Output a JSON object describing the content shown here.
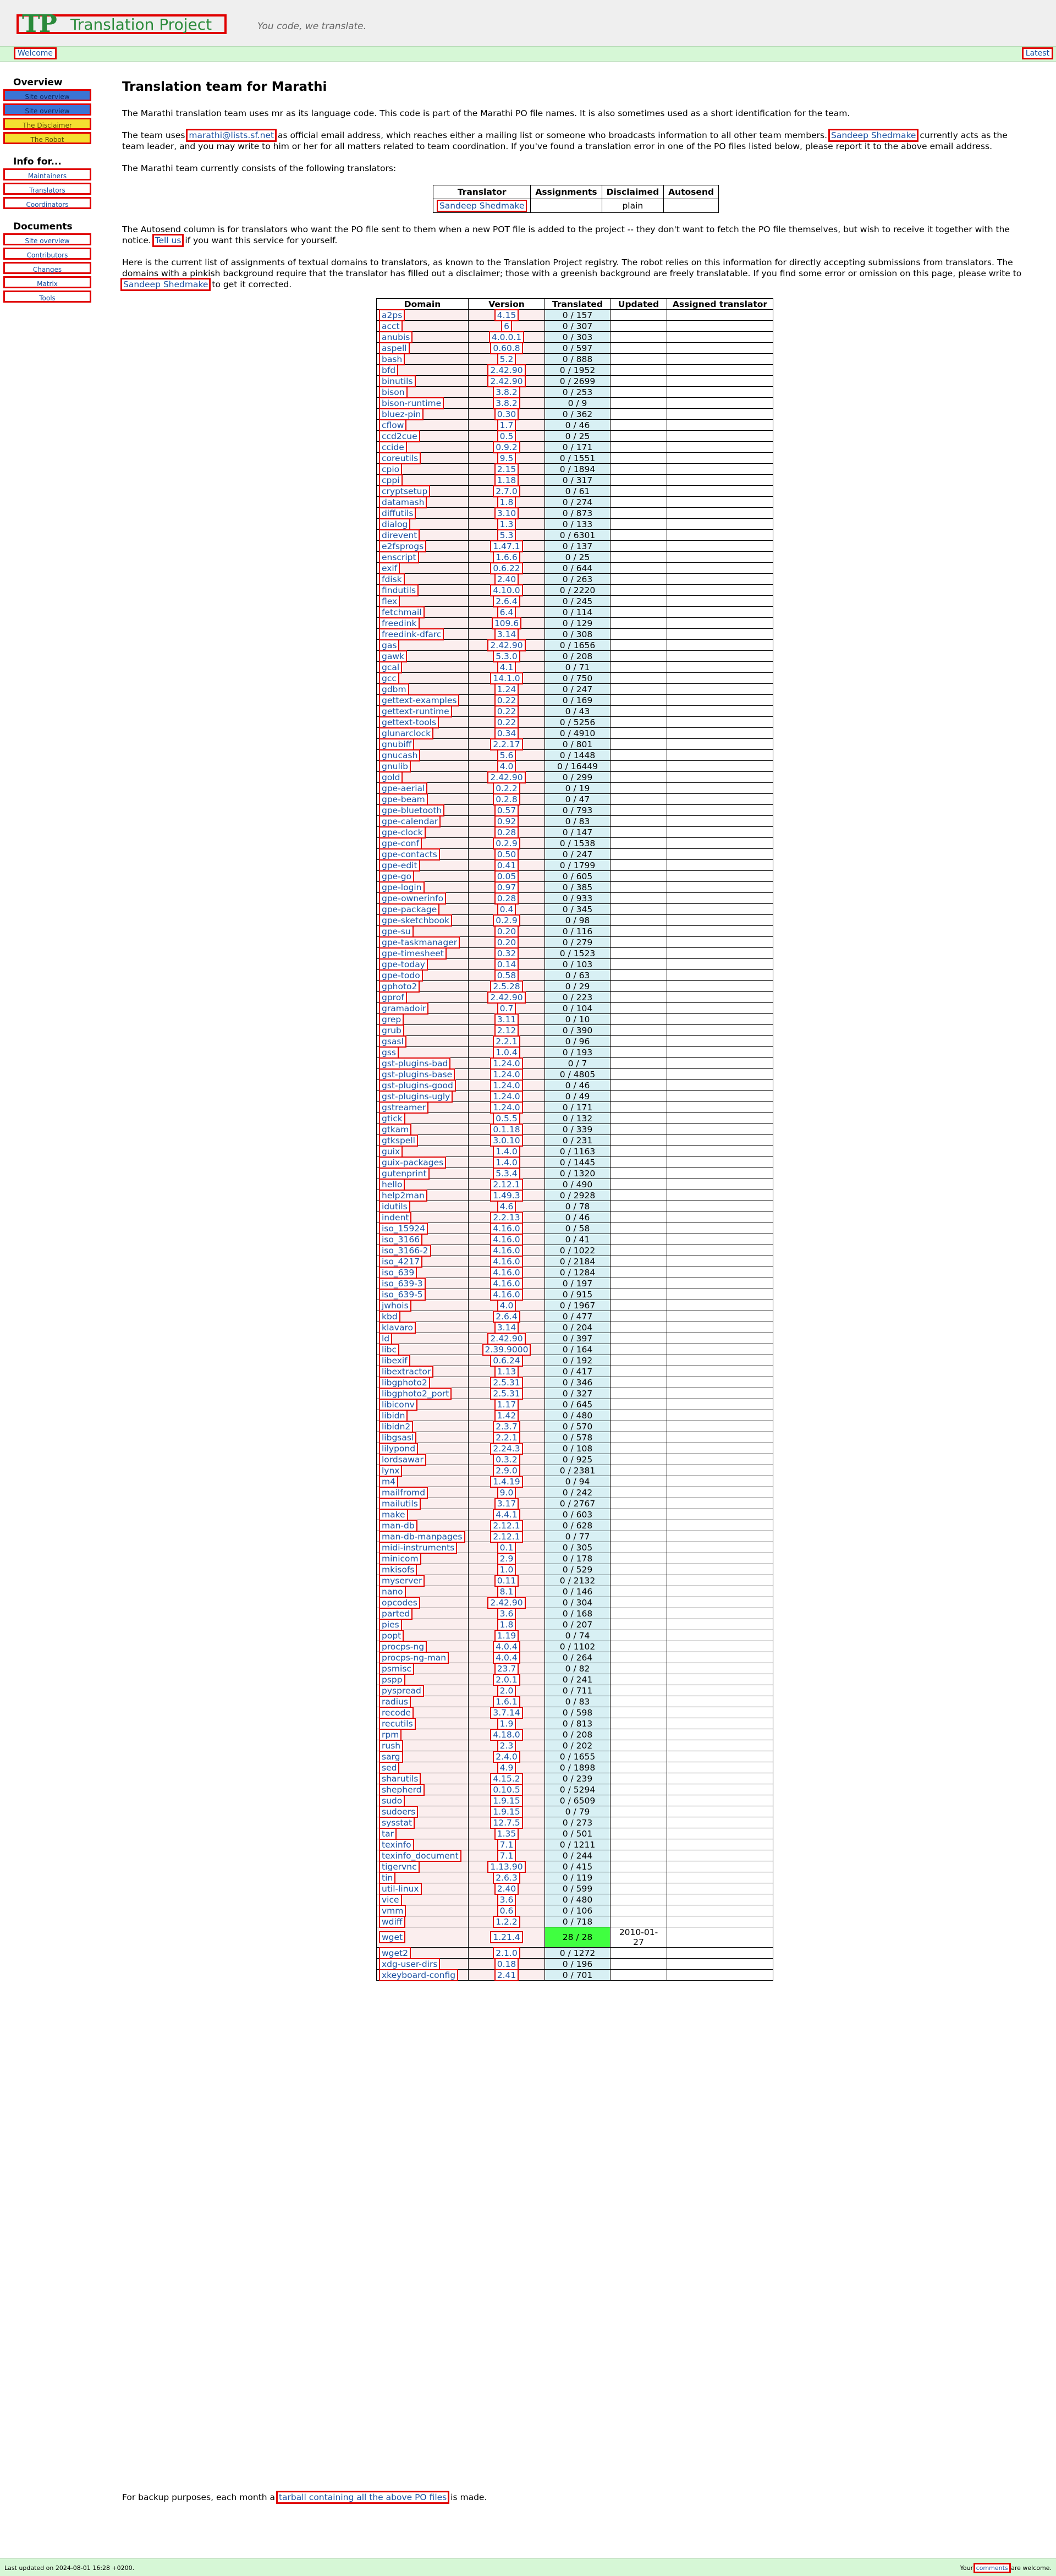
{
  "header": {
    "logo_mark": "TP",
    "logo_text": "Translation Project",
    "tagline": "You code, we translate."
  },
  "navbar": {
    "welcome": "Welcome",
    "latest": "Latest"
  },
  "sidebar": {
    "overview_title": "Overview",
    "overview_items": [
      {
        "label": "Site overview",
        "style": "blue"
      },
      {
        "label": "Site overview",
        "style": "blue"
      },
      {
        "label": "The Disclaimer",
        "style": "yellow"
      },
      {
        "label": "The Robot",
        "style": "yellow"
      }
    ],
    "info_title": "Info for...",
    "info_items": [
      "Maintainers",
      "Translators",
      "Coordinators"
    ],
    "docs_title": "Documents",
    "docs_items": [
      "Site overview",
      "Contributors",
      "Changes",
      "Matrix",
      "Tools"
    ]
  },
  "main": {
    "title": "Translation team for Marathi",
    "p1": "The Marathi translation team uses mr as its language code. This code is part of the Marathi PO file names. It is also sometimes used as a short identification for the team.",
    "p2_a": "The team uses",
    "p2_email": "marathi@lists.sf.net",
    "p2_b": "as official email address, which reaches either a mailing list or someone who broadcasts information to all other team members.",
    "p2_leader": "Sandeep Shedmake",
    "p2_c": "currently acts as the team leader, and you may write to him or her for all matters related to team coordination. If you've found a translation error in one of the PO files listed below, please report it to the above email address.",
    "p3": "The Marathi team currently consists of the following translators:",
    "translators_headers": [
      "Translator",
      "Assignments",
      "Disclaimed",
      "Autosend"
    ],
    "translators_rows": [
      [
        "Sandeep Shedmake",
        "",
        "plain",
        ""
      ]
    ],
    "p4_a": "The Autosend column is for translators who want the PO file sent to them when a new POT file is added to the project -- they don't want to fetch the PO file themselves, but wish to receive it together with the notice.",
    "p4_link": "Tell us",
    "p4_b": "if you want this service for yourself.",
    "p5_a": "Here is the current list of assignments of textual domains to translators, as known to the Translation Project registry. The robot relies on this information for directly accepting submissions from translators. The domains with a pinkish background require that the translator has filled out a disclaimer; those with a greenish background are freely translatable. If you find some error or omission on this page, please write to",
    "p5_link": "Sandeep Shedmake",
    "p5_b": "to get it corrected."
  },
  "domains_headers": [
    "Domain",
    "Version",
    "Translated",
    "Updated",
    "Assigned translator"
  ],
  "domains": [
    [
      "a2ps",
      "4.15",
      "0 / 157",
      ""
    ],
    [
      "acct",
      "6",
      "0 / 307",
      ""
    ],
    [
      "anubis",
      "4.0.0.1",
      "0 / 303",
      ""
    ],
    [
      "aspell",
      "0.60.8",
      "0 / 597",
      ""
    ],
    [
      "bash",
      "5.2",
      "0 / 888",
      ""
    ],
    [
      "bfd",
      "2.42.90",
      "0 / 1952",
      ""
    ],
    [
      "binutils",
      "2.42.90",
      "0 / 2699",
      ""
    ],
    [
      "bison",
      "3.8.2",
      "0 / 253",
      ""
    ],
    [
      "bison-runtime",
      "3.8.2",
      "0 / 9",
      ""
    ],
    [
      "bluez-pin",
      "0.30",
      "0 / 362",
      ""
    ],
    [
      "cflow",
      "1.7",
      "0 / 46",
      ""
    ],
    [
      "ccd2cue",
      "0.5",
      "0 / 25",
      ""
    ],
    [
      "ccide",
      "0.9.2",
      "0 / 171",
      ""
    ],
    [
      "coreutils",
      "9.5",
      "0 / 1551",
      ""
    ],
    [
      "cpio",
      "2.15",
      "0 / 1894",
      ""
    ],
    [
      "cppi",
      "1.18",
      "0 / 317",
      ""
    ],
    [
      "cryptsetup",
      "2.7.0",
      "0 / 61",
      ""
    ],
    [
      "datamash",
      "1.8",
      "0 / 274",
      ""
    ],
    [
      "diffutils",
      "3.10",
      "0 / 873",
      ""
    ],
    [
      "dialog",
      "1.3",
      "0 / 133",
      ""
    ],
    [
      "direvent",
      "5.3",
      "0 / 6301",
      ""
    ],
    [
      "e2fsprogs",
      "1.47.1",
      "0 / 137",
      ""
    ],
    [
      "enscript",
      "1.6.6",
      "0 / 25",
      ""
    ],
    [
      "exif",
      "0.6.22",
      "0 / 644",
      ""
    ],
    [
      "fdisk",
      "2.40",
      "0 / 263",
      ""
    ],
    [
      "findutils",
      "4.10.0",
      "0 / 2220",
      ""
    ],
    [
      "flex",
      "2.6.4",
      "0 / 245",
      ""
    ],
    [
      "fetchmail",
      "6.4",
      "0 / 114",
      ""
    ],
    [
      "freedink",
      "109.6",
      "0 / 129",
      ""
    ],
    [
      "freedink-dfarc",
      "3.14",
      "0 / 308",
      ""
    ],
    [
      "gas",
      "2.42.90",
      "0 / 1656",
      ""
    ],
    [
      "gawk",
      "5.3.0",
      "0 / 208",
      ""
    ],
    [
      "gcal",
      "4.1",
      "0 / 71",
      ""
    ],
    [
      "gcc",
      "14.1.0",
      "0 / 750",
      ""
    ],
    [
      "gdbm",
      "1.24",
      "0 / 247",
      ""
    ],
    [
      "gettext-examples",
      "0.22",
      "0 / 169",
      ""
    ],
    [
      "gettext-runtime",
      "0.22",
      "0 / 43",
      ""
    ],
    [
      "gettext-tools",
      "0.22",
      "0 / 5256",
      ""
    ],
    [
      "glunarclock",
      "0.34",
      "0 / 4910",
      ""
    ],
    [
      "gnubiff",
      "2.2.17",
      "0 / 801",
      ""
    ],
    [
      "gnucash",
      "5.6",
      "0 / 1448",
      ""
    ],
    [
      "gnulib",
      "4.0",
      "0 / 16449",
      ""
    ],
    [
      "gold",
      "2.42.90",
      "0 / 299",
      ""
    ],
    [
      "gpe-aerial",
      "0.2.2",
      "0 / 19",
      ""
    ],
    [
      "gpe-beam",
      "0.2.8",
      "0 / 47",
      ""
    ],
    [
      "gpe-bluetooth",
      "0.57",
      "0 / 793",
      ""
    ],
    [
      "gpe-calendar",
      "0.92",
      "0 / 83",
      ""
    ],
    [
      "gpe-clock",
      "0.28",
      "0 / 147",
      ""
    ],
    [
      "gpe-conf",
      "0.2.9",
      "0 / 1538",
      ""
    ],
    [
      "gpe-contacts",
      "0.50",
      "0 / 247",
      ""
    ],
    [
      "gpe-edit",
      "0.41",
      "0 / 1799",
      ""
    ],
    [
      "gpe-go",
      "0.05",
      "0 / 605",
      ""
    ],
    [
      "gpe-login",
      "0.97",
      "0 / 385",
      ""
    ],
    [
      "gpe-ownerinfo",
      "0.28",
      "0 / 933",
      ""
    ],
    [
      "gpe-package",
      "0.4",
      "0 / 345",
      ""
    ],
    [
      "gpe-sketchbook",
      "0.2.9",
      "0 / 98",
      ""
    ],
    [
      "gpe-su",
      "0.20",
      "0 / 116",
      ""
    ],
    [
      "gpe-taskmanager",
      "0.20",
      "0 / 279",
      ""
    ],
    [
      "gpe-timesheet",
      "0.32",
      "0 / 1523",
      ""
    ],
    [
      "gpe-today",
      "0.14",
      "0 / 103",
      ""
    ],
    [
      "gpe-todo",
      "0.58",
      "0 / 63",
      ""
    ],
    [
      "gphoto2",
      "2.5.28",
      "0 / 29",
      ""
    ],
    [
      "gprof",
      "2.42.90",
      "0 / 223",
      ""
    ],
    [
      "gramadoir",
      "0.7",
      "0 / 104",
      ""
    ],
    [
      "grep",
      "3.11",
      "0 / 10",
      ""
    ],
    [
      "grub",
      "2.12",
      "0 / 390",
      ""
    ],
    [
      "gsasl",
      "2.2.1",
      "0 / 96",
      ""
    ],
    [
      "gss",
      "1.0.4",
      "0 / 193",
      ""
    ],
    [
      "gst-plugins-bad",
      "1.24.0",
      "0 / 7",
      ""
    ],
    [
      "gst-plugins-base",
      "1.24.0",
      "0 / 4805",
      ""
    ],
    [
      "gst-plugins-good",
      "1.24.0",
      "0 / 46",
      ""
    ],
    [
      "gst-plugins-ugly",
      "1.24.0",
      "0 / 49",
      ""
    ],
    [
      "gstreamer",
      "1.24.0",
      "0 / 171",
      ""
    ],
    [
      "gtick",
      "0.5.5",
      "0 / 132",
      ""
    ],
    [
      "gtkam",
      "0.1.18",
      "0 / 339",
      ""
    ],
    [
      "gtkspell",
      "3.0.10",
      "0 / 231",
      ""
    ],
    [
      "guix",
      "1.4.0",
      "0 / 1163",
      ""
    ],
    [
      "guix-packages",
      "1.4.0",
      "0 / 1445",
      ""
    ],
    [
      "gutenprint",
      "5.3.4",
      "0 / 1320",
      ""
    ],
    [
      "hello",
      "2.12.1",
      "0 / 490",
      ""
    ],
    [
      "help2man",
      "1.49.3",
      "0 / 2928",
      ""
    ],
    [
      "idutils",
      "4.6",
      "0 / 78",
      ""
    ],
    [
      "indent",
      "2.2.13",
      "0 / 46",
      ""
    ],
    [
      "iso_15924",
      "4.16.0",
      "0 / 58",
      ""
    ],
    [
      "iso_3166",
      "4.16.0",
      "0 / 41",
      ""
    ],
    [
      "iso_3166-2",
      "4.16.0",
      "0 / 1022",
      ""
    ],
    [
      "iso_4217",
      "4.16.0",
      "0 / 2184",
      ""
    ],
    [
      "iso_639",
      "4.16.0",
      "0 / 1284",
      ""
    ],
    [
      "iso_639-3",
      "4.16.0",
      "0 / 197",
      ""
    ],
    [
      "iso_639-5",
      "4.16.0",
      "0 / 915",
      ""
    ],
    [
      "jwhois",
      "4.0",
      "0 / 1967",
      ""
    ],
    [
      "kbd",
      "2.6.4",
      "0 / 477",
      ""
    ],
    [
      "klavaro",
      "3.14",
      "0 / 204",
      ""
    ],
    [
      "ld",
      "2.42.90",
      "0 / 397",
      ""
    ],
    [
      "libc",
      "2.39.9000",
      "0 / 164",
      ""
    ],
    [
      "libexif",
      "0.6.24",
      "0 / 192",
      ""
    ],
    [
      "libextractor",
      "1.13",
      "0 / 417",
      ""
    ],
    [
      "libgphoto2",
      "2.5.31",
      "0 / 346",
      ""
    ],
    [
      "libgphoto2_port",
      "2.5.31",
      "0 / 327",
      ""
    ],
    [
      "libiconv",
      "1.17",
      "0 / 645",
      ""
    ],
    [
      "libidn",
      "1.42",
      "0 / 480",
      ""
    ],
    [
      "libidn2",
      "2.3.7",
      "0 / 570",
      ""
    ],
    [
      "libgsasl",
      "2.2.1",
      "0 / 578",
      ""
    ],
    [
      "lilypond",
      "2.24.3",
      "0 / 108",
      ""
    ],
    [
      "lordsawar",
      "0.3.2",
      "0 / 925",
      ""
    ],
    [
      "lynx",
      "2.9.0",
      "0 / 2381",
      ""
    ],
    [
      "m4",
      "1.4.19",
      "0 / 94",
      ""
    ],
    [
      "mailfromd",
      "9.0",
      "0 / 242",
      ""
    ],
    [
      "mailutils",
      "3.17",
      "0 / 2767",
      ""
    ],
    [
      "make",
      "4.4.1",
      "0 / 603",
      ""
    ],
    [
      "man-db",
      "2.12.1",
      "0 / 628",
      ""
    ],
    [
      "man-db-manpages",
      "2.12.1",
      "0 / 77",
      ""
    ],
    [
      "midi-instruments",
      "0.1",
      "0 / 305",
      ""
    ],
    [
      "minicom",
      "2.9",
      "0 / 178",
      ""
    ],
    [
      "mkisofs",
      "1.0",
      "0 / 529",
      ""
    ],
    [
      "myserver",
      "0.11",
      "0 / 2132",
      ""
    ],
    [
      "nano",
      "8.1",
      "0 / 146",
      ""
    ],
    [
      "opcodes",
      "2.42.90",
      "0 / 304",
      ""
    ],
    [
      "parted",
      "3.6",
      "0 / 168",
      ""
    ],
    [
      "pies",
      "1.8",
      "0 / 207",
      ""
    ],
    [
      "popt",
      "1.19",
      "0 / 74",
      ""
    ],
    [
      "procps-ng",
      "4.0.4",
      "0 / 1102",
      ""
    ],
    [
      "procps-ng-man",
      "4.0.4",
      "0 / 264",
      ""
    ],
    [
      "psmisc",
      "23.7",
      "0 / 82",
      ""
    ],
    [
      "pspp",
      "2.0.1",
      "0 / 241",
      ""
    ],
    [
      "pyspread",
      "2.0",
      "0 / 711",
      ""
    ],
    [
      "radius",
      "1.6.1",
      "0 / 83",
      ""
    ],
    [
      "recode",
      "3.7.14",
      "0 / 598",
      ""
    ],
    [
      "recutils",
      "1.9",
      "0 / 813",
      ""
    ],
    [
      "rpm",
      "4.18.0",
      "0 / 208",
      ""
    ],
    [
      "rush",
      "2.3",
      "0 / 202",
      ""
    ],
    [
      "sarg",
      "2.4.0",
      "0 / 1655",
      ""
    ],
    [
      "sed",
      "4.9",
      "0 / 1898",
      ""
    ],
    [
      "sharutils",
      "4.15.2",
      "0 / 239",
      ""
    ],
    [
      "shepherd",
      "0.10.5",
      "0 / 5294",
      ""
    ],
    [
      "sudo",
      "1.9.15",
      "0 / 6509",
      ""
    ],
    [
      "sudoers",
      "1.9.15",
      "0 / 79",
      ""
    ],
    [
      "sysstat",
      "12.7.5",
      "0 / 273",
      ""
    ],
    [
      "tar",
      "1.35",
      "0 / 501",
      ""
    ],
    [
      "texinfo",
      "7.1",
      "0 / 1211",
      ""
    ],
    [
      "texinfo_document",
      "7.1",
      "0 / 244",
      ""
    ],
    [
      "tigervnc",
      "1.13.90",
      "0 / 415",
      ""
    ],
    [
      "tin",
      "2.6.3",
      "0 / 119",
      ""
    ],
    [
      "util-linux",
      "2.40",
      "0 / 599",
      ""
    ],
    [
      "vice",
      "3.6",
      "0 / 480",
      ""
    ],
    [
      "vmm",
      "0.6",
      "0 / 106",
      ""
    ],
    [
      "wdiff",
      "1.2.2",
      "0 / 718",
      ""
    ],
    [
      "wget",
      "1.21.4",
      "28 / 28",
      "2010-01-27"
    ],
    [
      "wget2",
      "2.1.0",
      "0 / 1272",
      ""
    ],
    [
      "xdg-user-dirs",
      "0.18",
      "0 / 196",
      ""
    ],
    [
      "xkeyboard-config",
      "2.41",
      "0 / 701",
      ""
    ]
  ],
  "backup": {
    "a": "For backup purposes, each month a",
    "link": "tarball containing all the above PO files",
    "b": "is made."
  },
  "footer": {
    "updated": "Last updated on 2024-08-01 16:28 +0200.",
    "right_a": "Your",
    "right_link": "comments",
    "right_b": "are welcome."
  }
}
